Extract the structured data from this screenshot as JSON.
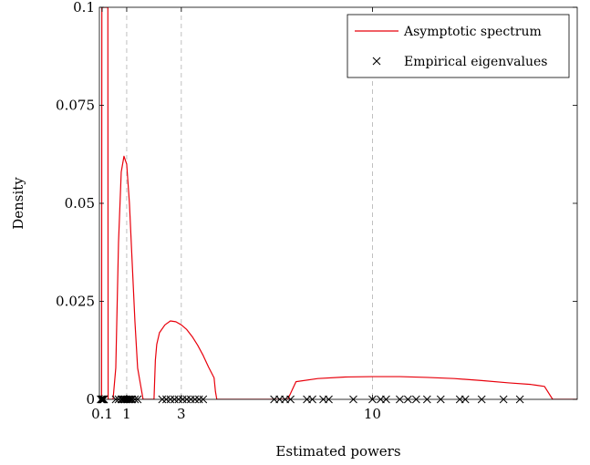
{
  "chart_data": {
    "type": "line",
    "xlabel": "Estimated powers",
    "ylabel": "Density",
    "xlim": [
      0,
      17.5
    ],
    "ylim": [
      0,
      0.1
    ],
    "x_ticks": [
      {
        "value": 0.1,
        "label": "0.1"
      },
      {
        "value": 1,
        "label": "1"
      },
      {
        "value": 3,
        "label": "3"
      },
      {
        "value": 10,
        "label": "10"
      }
    ],
    "y_ticks": [
      {
        "value": 0,
        "label": "0"
      },
      {
        "value": 0.025,
        "label": "0.025"
      },
      {
        "value": 0.05,
        "label": "0.05"
      },
      {
        "value": 0.075,
        "label": "0.075"
      },
      {
        "value": 0.1,
        "label": "0.1"
      }
    ],
    "vlines": [
      1,
      3,
      10
    ],
    "legend_position": "top-right",
    "series": [
      {
        "name": "Asymptotic spectrum",
        "kind": "line",
        "color": "#e8000b",
        "x": [
          0.0,
          0.08,
          0.09,
          0.1,
          0.2,
          0.3,
          0.31,
          0.32,
          0.5,
          0.6,
          0.7,
          0.8,
          0.9,
          1.0,
          1.1,
          1.2,
          1.3,
          1.4,
          1.5,
          1.55,
          1.6,
          2.0,
          2.05,
          2.1,
          2.2,
          2.4,
          2.6,
          2.8,
          3.0,
          3.2,
          3.4,
          3.6,
          3.8,
          4.0,
          4.2,
          4.25,
          4.3,
          5.0,
          6.0,
          6.9,
          7.2,
          8.0,
          9.0,
          10.0,
          11.0,
          12.0,
          13.0,
          14.0,
          15.0,
          15.8,
          16.0,
          16.3,
          16.6,
          17.5
        ],
        "y": [
          0,
          0,
          0.1,
          0.1,
          0.1,
          0.1,
          0.1,
          0,
          0,
          0.008,
          0.04,
          0.058,
          0.062,
          0.06,
          0.05,
          0.035,
          0.02,
          0.008,
          0.004,
          0.002,
          0,
          0,
          0.01,
          0.014,
          0.017,
          0.019,
          0.02,
          0.0198,
          0.019,
          0.0178,
          0.016,
          0.0138,
          0.0112,
          0.0082,
          0.0055,
          0.002,
          0,
          0,
          0,
          0,
          0.0045,
          0.0053,
          0.0057,
          0.0058,
          0.0058,
          0.0056,
          0.0053,
          0.0048,
          0.0042,
          0.0038,
          0.0036,
          0.0033,
          0,
          0
        ]
      },
      {
        "name": "Empirical eigenvalues",
        "kind": "scatter",
        "marker": "x",
        "color": "#000000",
        "x": [
          0.05,
          0.08,
          0.1,
          0.12,
          0.15,
          0.17,
          0.6,
          0.7,
          0.8,
          0.85,
          0.9,
          0.95,
          1.0,
          1.05,
          1.1,
          1.15,
          1.2,
          1.3,
          1.4,
          2.3,
          2.45,
          2.6,
          2.75,
          2.9,
          3.05,
          3.2,
          3.35,
          3.5,
          3.65,
          3.8,
          6.4,
          6.6,
          6.8,
          7.0,
          7.6,
          7.8,
          8.2,
          8.4,
          9.3,
          10.0,
          10.3,
          10.5,
          11.0,
          11.3,
          11.6,
          12.0,
          12.5,
          13.2,
          13.4,
          14.0,
          14.8,
          15.4
        ],
        "y": [
          0,
          0,
          0,
          0,
          0,
          0,
          0,
          0,
          0,
          0,
          0,
          0,
          0,
          0,
          0,
          0,
          0,
          0,
          0,
          0,
          0,
          0,
          0,
          0,
          0,
          0,
          0,
          0,
          0,
          0,
          0,
          0,
          0,
          0,
          0,
          0,
          0,
          0,
          0,
          0,
          0,
          0,
          0,
          0,
          0,
          0,
          0,
          0,
          0,
          0,
          0,
          0
        ]
      }
    ]
  }
}
